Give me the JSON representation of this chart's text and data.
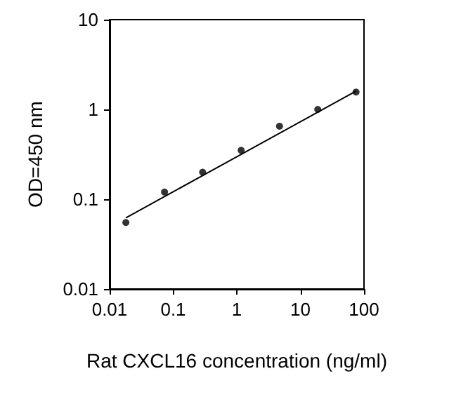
{
  "chart_data": {
    "type": "scatter",
    "xlabel": "Rat CXCL16 concentration (ng/ml)",
    "ylabel": "OD=450 nm",
    "log": "xy",
    "xlim": [
      0.01,
      100
    ],
    "ylim": [
      0.01,
      10
    ],
    "xticks": [
      0.01,
      0.1,
      1,
      10,
      100
    ],
    "yticks": [
      0.01,
      0.1,
      1,
      10
    ],
    "grid": false,
    "marker": "circle",
    "series": [
      {
        "color": "#000000",
        "x": [
          0.018,
          0.073,
          0.29,
          1.17,
          4.69,
          18.75,
          75
        ],
        "values": [
          0.055,
          0.12,
          0.2,
          0.35,
          0.65,
          1.0,
          1.56
        ]
      },
      {
        "type": "line",
        "color": "#000000",
        "marker": "none",
        "line_style": "solid",
        "x": [
          0.018,
          75
        ],
        "values": [
          0.062,
          1.6
        ]
      }
    ]
  }
}
